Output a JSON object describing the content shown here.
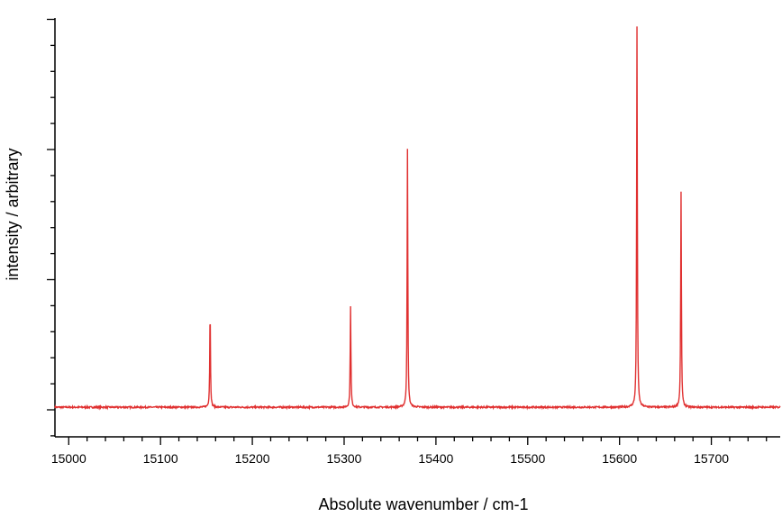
{
  "chart_data": {
    "type": "line",
    "title": "",
    "xlabel": "Absolute wavenumber / cm-1",
    "ylabel": "intensity / arbitrary",
    "xlim": [
      14985,
      15775
    ],
    "ylim": [
      -0.1,
      1.45
    ],
    "x_ticks": [
      15000,
      15100,
      15200,
      15300,
      15400,
      15500,
      15600,
      15700
    ],
    "x_minor_step": 20,
    "y_ticks_major": [
      0,
      0.5,
      1.0,
      1.5
    ],
    "y_minor_step": 0.1,
    "y_ticks_labeled": false,
    "grid": false,
    "legend": "none",
    "series": [
      {
        "color": "#e03030",
        "baseline": 0.01,
        "peaks": [
          {
            "x": 15154,
            "height": 0.38
          },
          {
            "x": 15307,
            "height": 0.39
          },
          {
            "x": 15369,
            "height": 0.99
          },
          {
            "x": 15619,
            "height": 1.46
          },
          {
            "x": 15667,
            "height": 0.83
          }
        ]
      }
    ]
  }
}
